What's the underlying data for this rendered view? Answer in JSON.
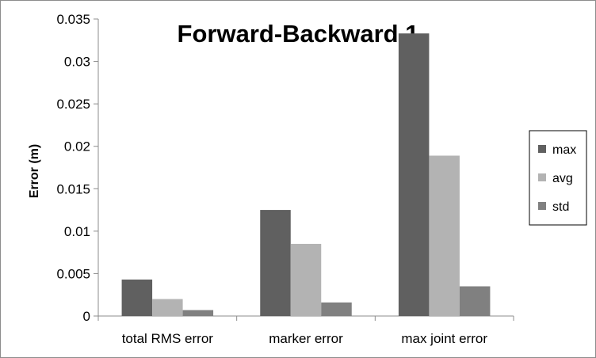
{
  "chart_data": {
    "type": "bar",
    "title": "Forward-Backward 1",
    "ylabel": "Error (m)",
    "xlabel": "",
    "categories": [
      "total RMS error",
      "marker error",
      "max joint error"
    ],
    "series": [
      {
        "name": "max",
        "values": [
          0.0043,
          0.0125,
          0.0333
        ],
        "color": "#606060"
      },
      {
        "name": "avg",
        "values": [
          0.002,
          0.0085,
          0.0189
        ],
        "color": "#b3b3b3"
      },
      {
        "name": "std",
        "values": [
          0.0007,
          0.0016,
          0.0035
        ],
        "color": "#808080"
      }
    ],
    "ylim": [
      0,
      0.035
    ],
    "yticks": [
      0,
      0.005,
      0.01,
      0.015,
      0.02,
      0.025,
      0.03,
      0.035
    ],
    "ytick_labels": [
      "0",
      "0.005",
      "0.01",
      "0.015",
      "0.02",
      "0.025",
      "0.03",
      "0.035"
    ],
    "grid": false,
    "legend_position": "right"
  }
}
